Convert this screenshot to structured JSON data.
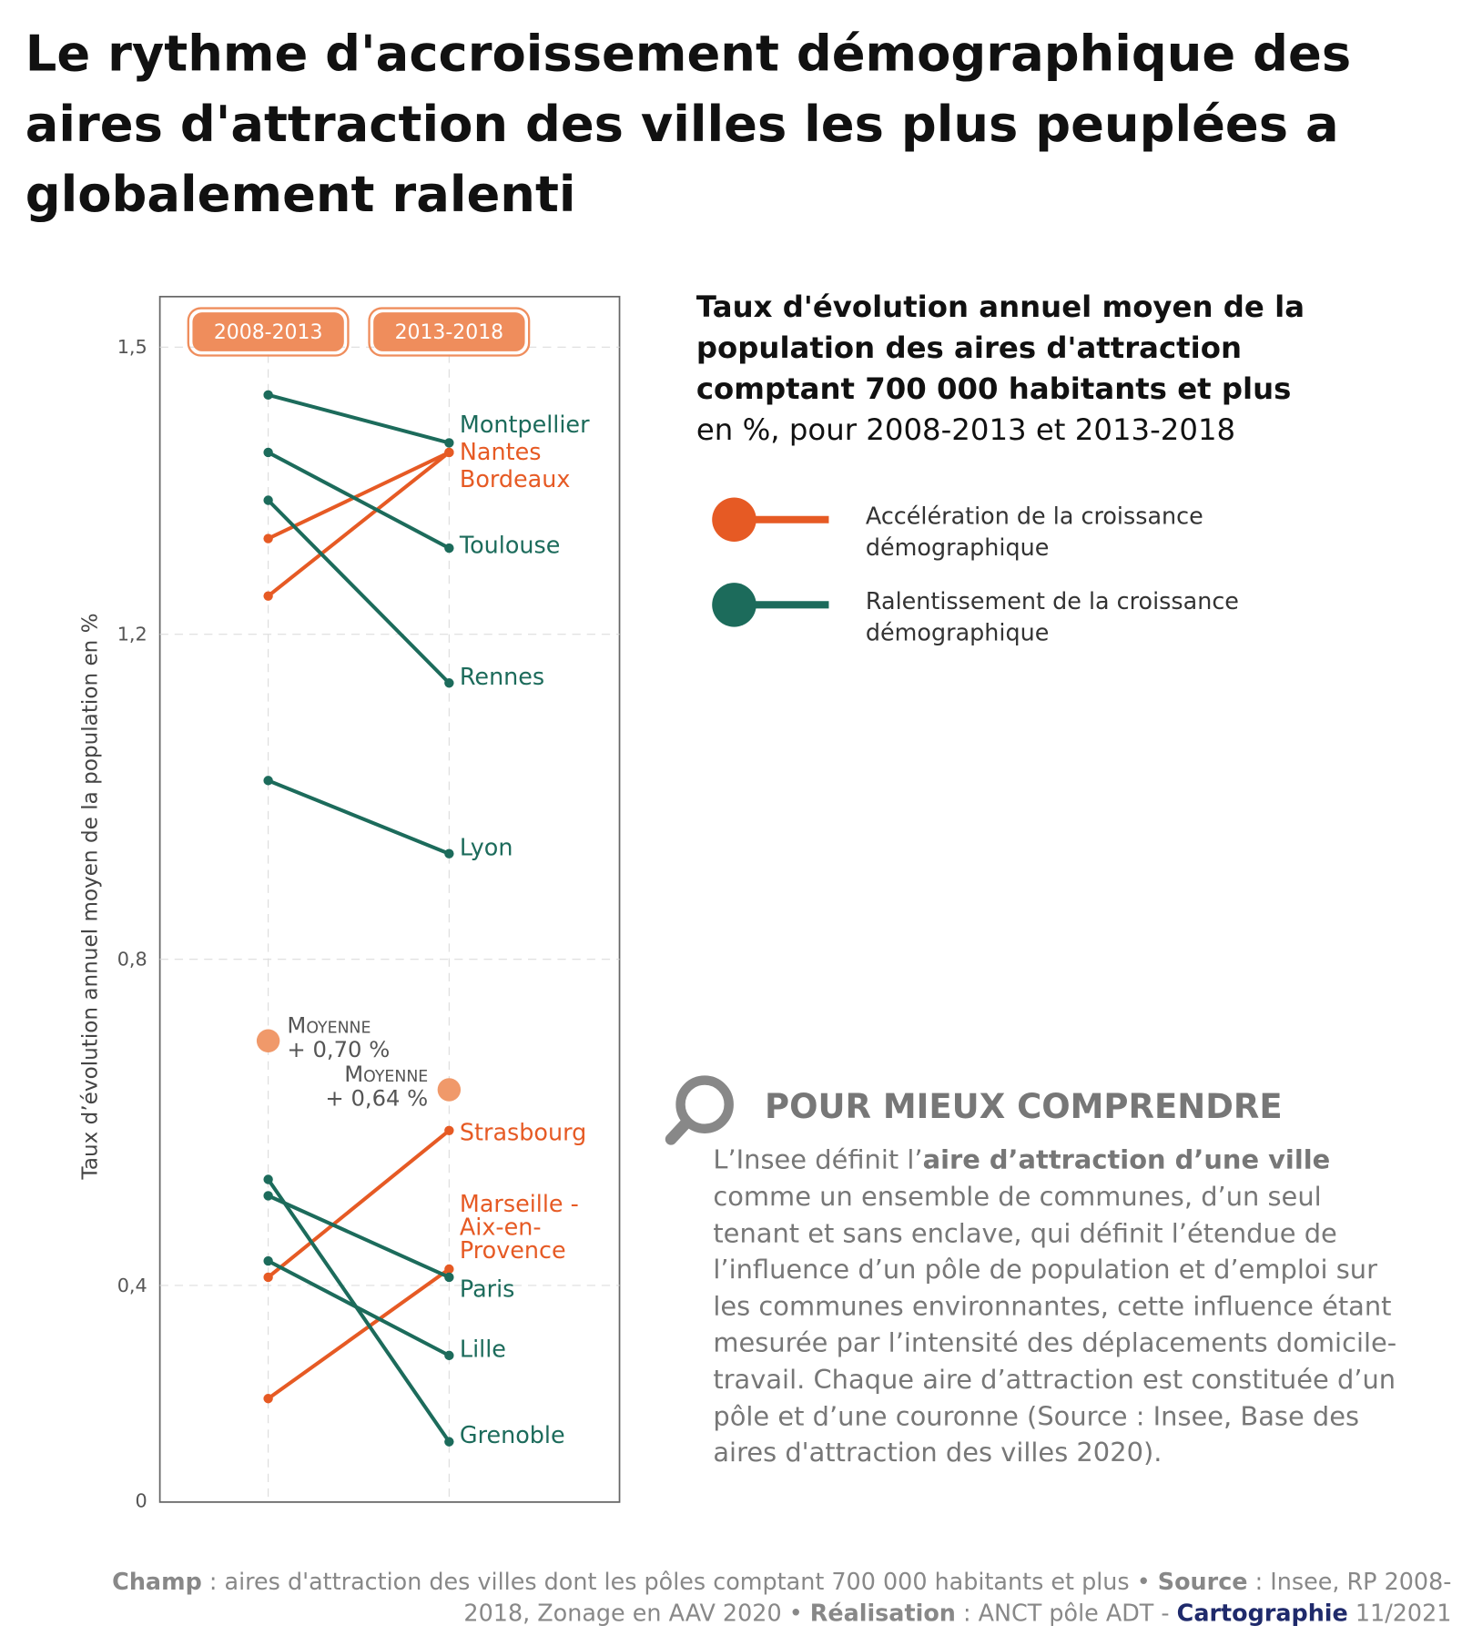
{
  "title": "Le rythme d'accroissement démographique des aires d'attraction des villes les plus peuplées a globalement ralenti",
  "chart_data": {
    "type": "slope",
    "categories": [
      "2008-2013",
      "2013-2018"
    ],
    "y_label": "Taux d’évolution annuel moyen de la population en %",
    "ylim": [
      0,
      1.55
    ],
    "yticks": [
      0,
      {
        "value": 0.4,
        "label": "0,4"
      },
      {
        "value": 0.8,
        "label": "0,8"
      },
      {
        "value": 1.2,
        "label": "1,2"
      },
      {
        "value": 1.5,
        "label": "1,5"
      }
    ],
    "grid": true,
    "series": [
      {
        "name": "Montpellier",
        "color": "#1c6b5b",
        "values": [
          1.45,
          1.4
        ]
      },
      {
        "name": "Nantes",
        "color": "#e65a24",
        "values": [
          1.3,
          1.39
        ]
      },
      {
        "name": "Bordeaux",
        "color": "#e65a24",
        "values": [
          1.24,
          1.39
        ]
      },
      {
        "name": "Toulouse",
        "color": "#1c6b5b",
        "values": [
          1.39,
          1.29
        ]
      },
      {
        "name": "Rennes",
        "color": "#1c6b5b",
        "values": [
          1.34,
          1.14
        ]
      },
      {
        "name": "Lyon",
        "color": "#1c6b5b",
        "values": [
          1.02,
          0.93
        ]
      },
      {
        "name": "Strasbourg",
        "color": "#e65a24",
        "values": [
          0.41,
          0.59
        ]
      },
      {
        "name": "Marseille - Aix-en-Provence",
        "color": "#e65a24",
        "values": [
          0.19,
          0.42
        ]
      },
      {
        "name": "Paris",
        "color": "#1c6b5b",
        "values": [
          0.51,
          0.41
        ]
      },
      {
        "name": "Lille",
        "color": "#1c6b5b",
        "values": [
          0.43,
          0.27
        ]
      },
      {
        "name": "Grenoble",
        "color": "#1c6b5b",
        "values": [
          0.53,
          0.11
        ]
      }
    ],
    "means": [
      {
        "title": "Moyenne",
        "value": 0.7,
        "value_label": "+ 0,70 %",
        "color": "#f0996a"
      },
      {
        "title": "Moyenne",
        "value": 0.64,
        "value_label": "+ 0,64 %",
        "color": "#f0996a"
      }
    ],
    "legend_title": "Taux d'évolution annuel moyen de la population des aires d'attraction comptant 700 000 habitants et plus",
    "legend_subtitle": "en %, pour 2008-2013 et 2013-2018",
    "legend": [
      {
        "label": "Accélération de la croissance démographique",
        "color": "#e65a24"
      },
      {
        "label": "Ralentissement de la croissance démographique",
        "color": "#1c6b5b"
      }
    ]
  },
  "info": {
    "title": "POUR MIEUX COMPRENDRE",
    "body": [
      {
        "text": "L’Insee définit l’",
        "bold": false
      },
      {
        "text": "aire d’attraction d’une ville",
        "bold": true
      },
      {
        "text": " comme un ensemble de communes, d’un seul tenant et sans enclave, qui définit l’étendue de l’influence d’un pôle de population et d’emploi sur les communes environnantes, cette influence étant mesurée par l’intensité des déplacements domicile-travail. Chaque aire d’attraction est constituée d’un pôle et d’une couronne (Source : Insee, Base des aires d'attraction des villes 2020).",
        "bold": false
      }
    ]
  },
  "footer": [
    {
      "text": "Champ",
      "bold": true
    },
    {
      "text": " : aires d'attraction des villes dont les pôles comptant 700 000 habitants et plus • ",
      "bold": false
    },
    {
      "text": "Source",
      "bold": true
    },
    {
      "text": " : Insee, RP 2008-2018, Zonage en AAV 2020 • ",
      "bold": false
    },
    {
      "text": "Réalisation",
      "bold": true
    },
    {
      "text": " : ANCT pôle ADT - ",
      "bold": false
    },
    {
      "text": "Cartographie",
      "bold": true,
      "accent": true
    },
    {
      "text": " 11/2021",
      "bold": false
    }
  ]
}
